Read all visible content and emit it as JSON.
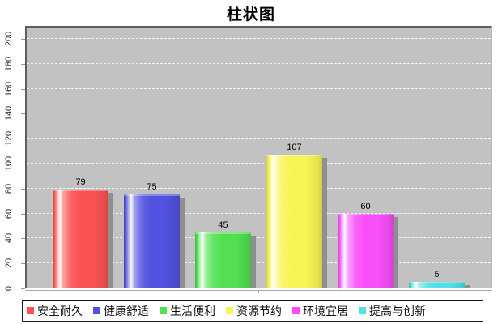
{
  "chart_data": {
    "type": "bar",
    "title": "柱状图",
    "categories": [
      "安全耐久",
      "健康舒适",
      "生活便利",
      "资源节约",
      "环境宜居",
      "提高与创新"
    ],
    "values": [
      79,
      75,
      45,
      107,
      60,
      5
    ],
    "colors": [
      "#fa5252",
      "#5252e0",
      "#52e052",
      "#f8f455",
      "#f84ff8",
      "#52e0e6"
    ],
    "xlabel": "",
    "ylabel": "",
    "ylim": [
      0,
      210
    ],
    "yticks": [
      0,
      20,
      40,
      60,
      80,
      100,
      120,
      140,
      160,
      180,
      200
    ],
    "grid": "horizontal dashed white lines on gray plot background",
    "plot_background": "#c2c2c2",
    "shadow_color": "#8f8f8f",
    "legend_position": "bottom",
    "value_labels_shown": true
  }
}
